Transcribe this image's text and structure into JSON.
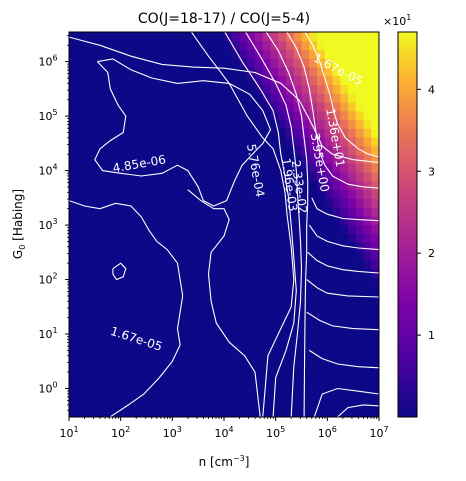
{
  "chart_data": {
    "type": "heatmap",
    "title": "CO(J=18-17) / CO(J=5-4)",
    "xlabel": "n [cm",
    "xlabel_exp": "−3",
    "xlabel_end": "]",
    "ylabel": "G",
    "ylabel_sub": "0",
    "ylabel_end": " [Habing]",
    "x_scale": "log",
    "y_scale": "log",
    "xlim": [
      10,
      10000000
    ],
    "ylim": [
      0.3,
      3500000
    ],
    "x_ticks": [
      {
        "value": 10,
        "base": "10",
        "exp": "1"
      },
      {
        "value": 100,
        "base": "10",
        "exp": "2"
      },
      {
        "value": 1000,
        "base": "10",
        "exp": "3"
      },
      {
        "value": 10000,
        "base": "10",
        "exp": "4"
      },
      {
        "value": 100000,
        "base": "10",
        "exp": "5"
      },
      {
        "value": 1000000,
        "base": "10",
        "exp": "6"
      },
      {
        "value": 10000000,
        "base": "10",
        "exp": "7"
      }
    ],
    "y_ticks": [
      {
        "value": 1,
        "base": "10",
        "exp": "0"
      },
      {
        "value": 10,
        "base": "10",
        "exp": "1"
      },
      {
        "value": 100,
        "base": "10",
        "exp": "2"
      },
      {
        "value": 1000,
        "base": "10",
        "exp": "3"
      },
      {
        "value": 10000,
        "base": "10",
        "exp": "4"
      },
      {
        "value": 100000,
        "base": "10",
        "exp": "5"
      },
      {
        "value": 1000000,
        "base": "10",
        "exp": "6"
      }
    ],
    "colormap": "plasma",
    "colorbar": {
      "min": 0,
      "max": 4.7,
      "ticks": [
        1,
        2,
        3,
        4
      ],
      "tick_labels": [
        "1",
        "2",
        "3",
        "4"
      ],
      "multiplier_base": "×10",
      "multiplier_exp": "1"
    },
    "contour_labels": [
      {
        "text": "1.67e-05",
        "x": 1600000,
        "y": 700000,
        "rotation": 28
      },
      {
        "text": "4.85e-06",
        "x": 230,
        "y": 13000,
        "rotation": -10
      },
      {
        "text": "1.67e-05",
        "x": 200,
        "y": 8,
        "rotation": 18
      },
      {
        "text": "5.76e-04",
        "x": 40000,
        "y": 10000,
        "rotation": 80
      },
      {
        "text": "1.36e+01",
        "x": 1400000,
        "y": 40000,
        "rotation": 80
      },
      {
        "text": "3.95e+00",
        "x": 700000,
        "y": 14000,
        "rotation": 80
      },
      {
        "text": "2.33e-02",
        "x": 280000,
        "y": 5000,
        "rotation": 82
      },
      {
        "text": "1.96e-03",
        "x": 180000,
        "y": 5500,
        "rotation": 82
      }
    ],
    "contour_levels": [
      "4.85e-06",
      "1.67e-05",
      "5.76e-04",
      "1.96e-03",
      "2.33e-02",
      "3.95e+00",
      "1.36e+01"
    ],
    "colors": {
      "background": "#0d0887",
      "contour": "#ffffff"
    }
  }
}
